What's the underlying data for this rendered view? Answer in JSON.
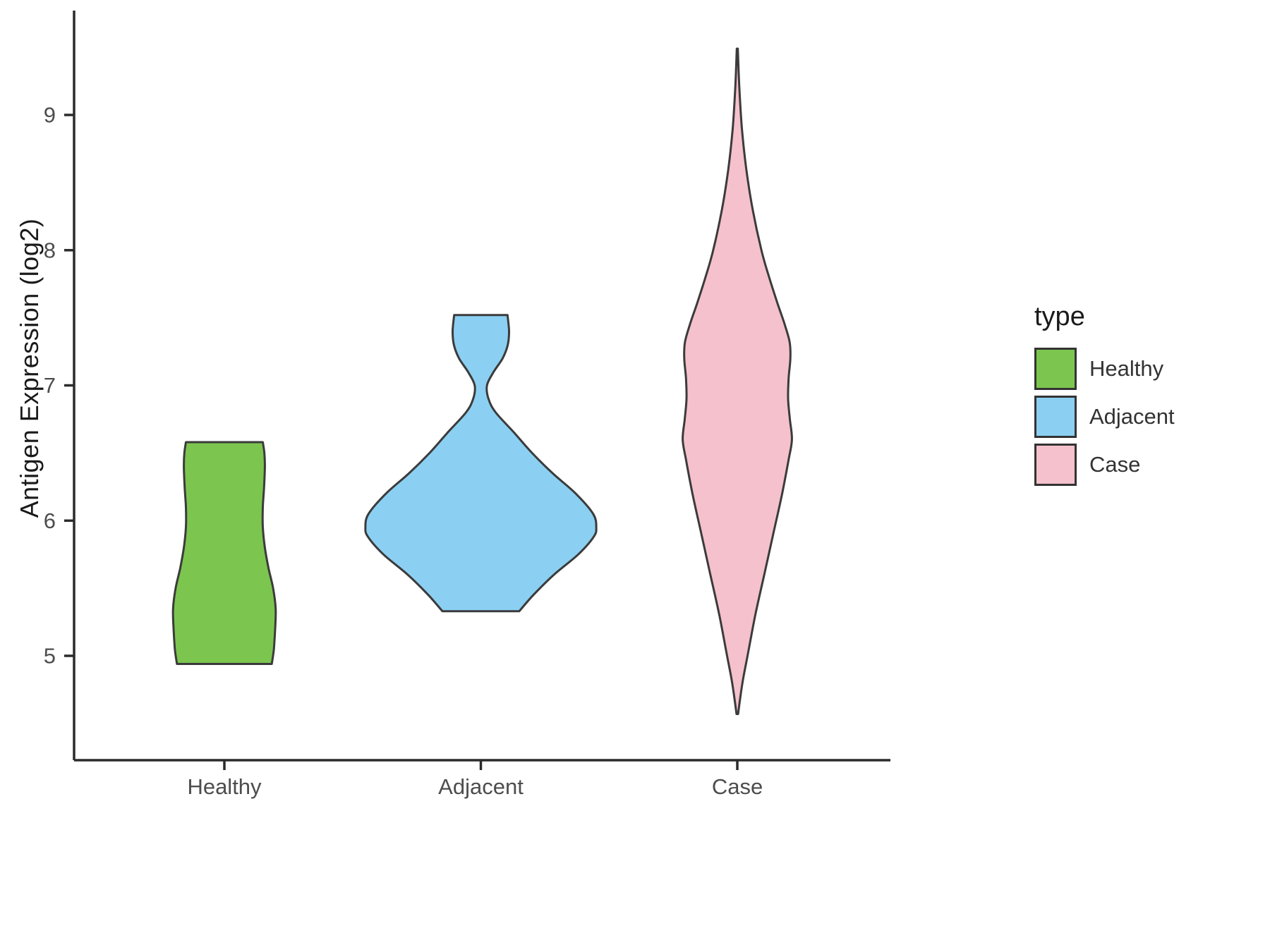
{
  "chart_data": {
    "type": "violin",
    "title": "",
    "xlabel": "",
    "ylabel": "Antigen Expression (log2)",
    "categories": [
      "Healthy",
      "Adjacent",
      "Case"
    ],
    "y_ticks": [
      5,
      6,
      7,
      8,
      9
    ],
    "ylim": [
      4.3,
      9.75
    ],
    "grid": "off",
    "axis_color": "#2b2b2b",
    "tick_label_color": "#4d4d4d",
    "outline_color": "#3b3b3b",
    "legend": {
      "title": "type",
      "position": "right",
      "entries": [
        {
          "label": "Healthy",
          "color": "#7cc64f"
        },
        {
          "label": "Adjacent",
          "color": "#8bd0f2"
        },
        {
          "label": "Case",
          "color": "#f5c1cd"
        }
      ]
    },
    "series": [
      {
        "name": "Healthy",
        "color": "#7cc64f",
        "category_index": 0,
        "y_range": [
          4.94,
          6.58
        ],
        "cap_top": true,
        "cap_bottom": true,
        "profile": [
          [
            4.94,
            0.185
          ],
          [
            5.05,
            0.193
          ],
          [
            5.2,
            0.198
          ],
          [
            5.35,
            0.2
          ],
          [
            5.5,
            0.19
          ],
          [
            5.65,
            0.172
          ],
          [
            5.8,
            0.158
          ],
          [
            5.95,
            0.15
          ],
          [
            6.1,
            0.15
          ],
          [
            6.25,
            0.155
          ],
          [
            6.4,
            0.158
          ],
          [
            6.5,
            0.156
          ],
          [
            6.58,
            0.15
          ]
        ]
      },
      {
        "name": "Adjacent",
        "color": "#8bd0f2",
        "category_index": 1,
        "y_range": [
          5.33,
          7.52
        ],
        "cap_top": true,
        "cap_bottom": true,
        "profile": [
          [
            5.33,
            0.15
          ],
          [
            5.45,
            0.205
          ],
          [
            5.6,
            0.285
          ],
          [
            5.75,
            0.38
          ],
          [
            5.88,
            0.44
          ],
          [
            5.95,
            0.45
          ],
          [
            6.05,
            0.438
          ],
          [
            6.2,
            0.37
          ],
          [
            6.35,
            0.28
          ],
          [
            6.5,
            0.2
          ],
          [
            6.65,
            0.13
          ],
          [
            6.8,
            0.058
          ],
          [
            6.9,
            0.03
          ],
          [
            7.0,
            0.024
          ],
          [
            7.1,
            0.05
          ],
          [
            7.2,
            0.085
          ],
          [
            7.3,
            0.105
          ],
          [
            7.4,
            0.11
          ],
          [
            7.52,
            0.104
          ]
        ]
      },
      {
        "name": "Case",
        "color": "#f5c1cd",
        "category_index": 2,
        "y_range": [
          4.57,
          9.49
        ],
        "cap_top": false,
        "cap_bottom": false,
        "profile": [
          [
            4.57,
            0.003
          ],
          [
            4.8,
            0.02
          ],
          [
            5.0,
            0.04
          ],
          [
            5.3,
            0.07
          ],
          [
            5.6,
            0.105
          ],
          [
            5.9,
            0.14
          ],
          [
            6.2,
            0.175
          ],
          [
            6.45,
            0.2
          ],
          [
            6.6,
            0.213
          ],
          [
            6.75,
            0.205
          ],
          [
            6.9,
            0.198
          ],
          [
            7.05,
            0.2
          ],
          [
            7.2,
            0.207
          ],
          [
            7.32,
            0.204
          ],
          [
            7.45,
            0.185
          ],
          [
            7.6,
            0.158
          ],
          [
            7.8,
            0.124
          ],
          [
            8.0,
            0.094
          ],
          [
            8.3,
            0.06
          ],
          [
            8.6,
            0.035
          ],
          [
            8.9,
            0.018
          ],
          [
            9.2,
            0.008
          ],
          [
            9.49,
            0.002
          ]
        ]
      }
    ]
  }
}
